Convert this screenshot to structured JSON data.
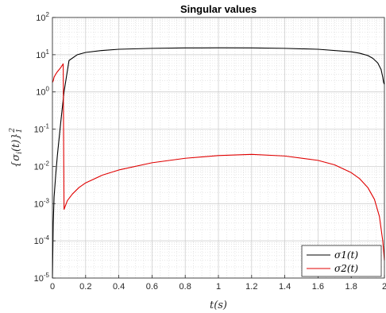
{
  "chart_data": {
    "type": "line",
    "title": "Singular values",
    "xlabel": "t(s)",
    "ylabel": "{σ_i(t)}_1^2",
    "xlim": [
      0,
      2
    ],
    "ylim": [
      1e-05,
      100
    ],
    "yscale": "log",
    "grid": true,
    "minor_grid": true,
    "legend_position": "bottom-right",
    "x_ticks": [
      "0",
      "0.2",
      "0.4",
      "0.6",
      "0.8",
      "1",
      "1.2",
      "1.4",
      "1.6",
      "1.8",
      "2"
    ],
    "y_ticks": [
      {
        "base": "10",
        "exp": "-5"
      },
      {
        "base": "10",
        "exp": "-4"
      },
      {
        "base": "10",
        "exp": "-3"
      },
      {
        "base": "10",
        "exp": "-2"
      },
      {
        "base": "10",
        "exp": "-1"
      },
      {
        "base": "10",
        "exp": "0"
      },
      {
        "base": "10",
        "exp": "1"
      },
      {
        "base": "10",
        "exp": "2"
      }
    ],
    "series": [
      {
        "name": "σ1(t)",
        "color": "#000000",
        "x": [
          0,
          0.005,
          0.01,
          0.02,
          0.03,
          0.05,
          0.07,
          0.1,
          0.15,
          0.2,
          0.3,
          0.4,
          0.6,
          0.8,
          1.0,
          1.2,
          1.4,
          1.6,
          1.8,
          1.85,
          1.9,
          1.93,
          1.96,
          1.98,
          1.99,
          1.995,
          2.0
        ],
        "y": [
          1e-05,
          0.0003,
          0.0015,
          0.006,
          0.02,
          0.15,
          1.0,
          7.0,
          10.0,
          11.5,
          13.0,
          14.0,
          14.8,
          15.2,
          15.3,
          15.2,
          14.8,
          14.0,
          12.0,
          11.0,
          9.5,
          8.0,
          6.0,
          4.0,
          2.5,
          1.8,
          1.6
        ]
      },
      {
        "name": "σ2(t)",
        "color": "#e00000",
        "x": [
          0,
          0.005,
          0.01,
          0.02,
          0.03,
          0.05,
          0.065,
          0.068,
          0.07,
          0.09,
          0.12,
          0.16,
          0.2,
          0.3,
          0.4,
          0.6,
          0.8,
          1.0,
          1.2,
          1.4,
          1.6,
          1.7,
          1.8,
          1.85,
          1.9,
          1.94,
          1.97,
          1.99,
          2.0
        ],
        "y": [
          1.8,
          2.0,
          2.5,
          3.0,
          3.5,
          4.5,
          5.7,
          0.02,
          0.0007,
          0.0012,
          0.0018,
          0.0027,
          0.0036,
          0.0058,
          0.008,
          0.0125,
          0.0165,
          0.0195,
          0.021,
          0.019,
          0.0145,
          0.011,
          0.0068,
          0.0047,
          0.0027,
          0.0013,
          0.00045,
          0.0001,
          3e-05
        ]
      }
    ]
  }
}
